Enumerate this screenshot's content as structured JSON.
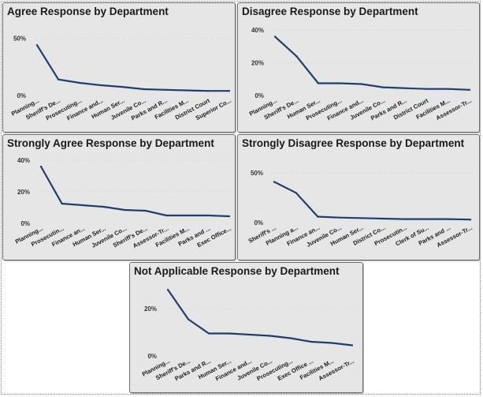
{
  "colors": {
    "line": "#1f3f6e",
    "panel_bg": "#e6e6e6",
    "border": "#6e6e6e",
    "grid": "#c8c8c8"
  },
  "chart_data": [
    {
      "type": "line",
      "title": "Agree Response by Department",
      "categories": [
        "Planning...",
        "Sheriff's De...",
        "Prosecuting...",
        "Finance and...",
        "Human Ser...",
        "Juvenile Co...",
        "Parks and R...",
        "Facilities M...",
        "District Court",
        "Superior Co..."
      ],
      "values": [
        44,
        14,
        11,
        9,
        7.5,
        5.5,
        5,
        4.5,
        4,
        4
      ],
      "ylim": [
        0,
        60
      ],
      "yticks": [
        0,
        50
      ],
      "ytick_labels": [
        "0%",
        "50%"
      ],
      "grid": true
    },
    {
      "type": "line",
      "title": "Disagree Response by Department",
      "categories": [
        "Planning...",
        "Sheriff's De...",
        "Human Ser...",
        "Prosecuting...",
        "Finance and...",
        "Juvenile Co...",
        "Parks and R...",
        "District Court",
        "Facilities M...",
        "Assessor-Tr..."
      ],
      "values": [
        36,
        24,
        7.5,
        7.5,
        7,
        5,
        4.5,
        4,
        4,
        3.5
      ],
      "ylim": [
        0,
        42
      ],
      "yticks": [
        0,
        20,
        40
      ],
      "ytick_labels": [
        "0%",
        "20%",
        "40%"
      ],
      "grid": true
    },
    {
      "type": "line",
      "title": "Strongly Agree Response by Department",
      "categories": [
        "Planning...",
        "Prosecutin...",
        "Finance an...",
        "Human Ser...",
        "Juvenile Co...",
        "Sheriff's De...",
        "Assessor-Tr...",
        "Facilities M...",
        "Parks and ...",
        "Exec Office..."
      ],
      "values": [
        36,
        12.5,
        11.5,
        10.5,
        8.5,
        8,
        5,
        5,
        5,
        4.5
      ],
      "ylim": [
        0,
        42
      ],
      "yticks": [
        0,
        20,
        40
      ],
      "ytick_labels": [
        "0%",
        "20%",
        "40%"
      ],
      "grid": true
    },
    {
      "type": "line",
      "title": "Strongly Disagree Response by Department",
      "categories": [
        "Sheriff's ...",
        "Planning a...",
        "Finance an...",
        "Juvenile Co...",
        "Human Ser...",
        "District Co...",
        "Prosecutin...",
        "Clerk of Su...",
        "Parks and ...",
        "Assessor-Tr..."
      ],
      "values": [
        41,
        30,
        6,
        5,
        4.5,
        4,
        3.5,
        3.5,
        3.5,
        3
      ],
      "ylim": [
        0,
        62
      ],
      "yticks": [
        0,
        50
      ],
      "ytick_labels": [
        "0%",
        "50%"
      ],
      "grid": true
    },
    {
      "type": "line",
      "title": "Not Applicable Response by Department",
      "categories": [
        "Planning...",
        "Sheriff's De...",
        "Parks and R...",
        "Human Ser...",
        "Finance and...",
        "Juvenile Co...",
        "Prosecuting...",
        "Exec Office ...",
        "Facilities M...",
        "Assessor-Tr..."
      ],
      "values": [
        28,
        15.5,
        9.5,
        9.5,
        9,
        8.5,
        7.5,
        6,
        5.5,
        4.5
      ],
      "ylim": [
        0,
        31
      ],
      "yticks": [
        0,
        20
      ],
      "ytick_labels": [
        "0%",
        "20%"
      ],
      "grid": true
    }
  ]
}
